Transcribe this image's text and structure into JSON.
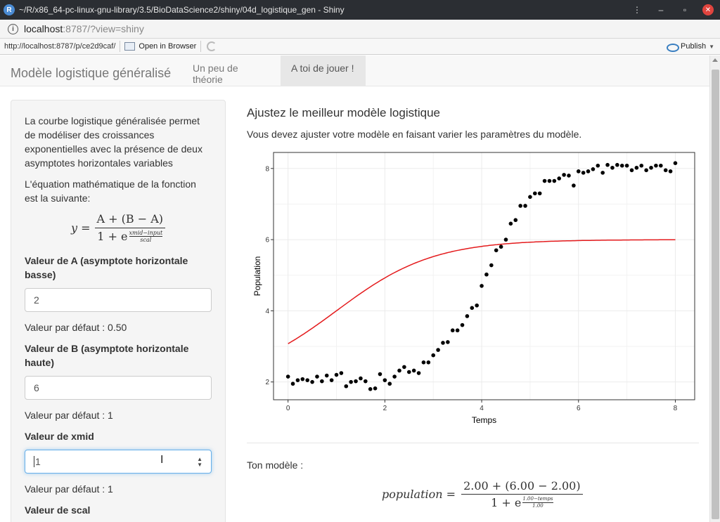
{
  "window": {
    "title": "~/R/x86_64-pc-linux-gnu-library/3.5/BioDataScience2/shiny/04d_logistique_gen - Shiny",
    "controls": [
      "⋮",
      "–",
      "▫"
    ],
    "close": "✕"
  },
  "address": {
    "host": "localhost",
    "rest": ":8787/?view=shiny"
  },
  "toolbar": {
    "url": "http://localhost:8787/p/ce2d9caf/",
    "open_browser": "Open in Browser",
    "publish": "Publish"
  },
  "navbar": {
    "brand": "Modèle logistique généralisé",
    "tabs": [
      {
        "label": "Un peu de théorie",
        "active": false
      },
      {
        "label": "A toi de jouer !",
        "active": true
      }
    ]
  },
  "sidebar": {
    "intro": "La courbe logistique généralisée permet de modéliser des croissances exponentielles avec la présence de deux asymptotes horizontales variables",
    "eq_intro": "L'équation mathématique de la fonction est la suivante:",
    "equation": {
      "lhs": "y =",
      "num": "A + (B − A)",
      "den": "1 + e",
      "exp_num": "xmid−input",
      "exp_den": "scal"
    },
    "fields": [
      {
        "label": "Valeur de A (asymptote horizontale basse)",
        "value": "2",
        "default": "Valeur par défaut : 0.50"
      },
      {
        "label": "Valeur de B (asymptote horizontale haute)",
        "value": "6",
        "default": "Valeur par défaut : 1"
      },
      {
        "label": "Valeur de xmid",
        "value": "1",
        "default": "Valeur par défaut : 1"
      },
      {
        "label": "Valeur de scal"
      }
    ]
  },
  "main": {
    "heading": "Ajustez le meilleur modèle logistique",
    "subtitle": "Vous devez ajuster votre modèle en faisant varier les paramètres du modèle.",
    "model_label": "Ton modèle :",
    "model_equation": {
      "lhs": "population =",
      "num": "2.00 + (6.00 − 2.00)",
      "den": "1 + e",
      "exp_num": "1.00−temps",
      "exp_den": "1.00"
    }
  },
  "colors": {
    "curve": "#e41a1c",
    "points": "#000000",
    "accent_focus": "#66afe9"
  },
  "chart_data": {
    "type": "scatter",
    "xlabel": "Temps",
    "ylabel": "Population",
    "xlim": [
      -0.3,
      8.4
    ],
    "ylim": [
      1.5,
      8.45
    ],
    "xticks": [
      0,
      2,
      4,
      6,
      8
    ],
    "yticks": [
      2,
      4,
      6,
      8
    ],
    "grid": true,
    "points": {
      "x": [
        0.0,
        0.1,
        0.2,
        0.3,
        0.4,
        0.5,
        0.6,
        0.7,
        0.8,
        0.9,
        1.0,
        1.1,
        1.2,
        1.3,
        1.4,
        1.5,
        1.6,
        1.7,
        1.8,
        1.9,
        2.0,
        2.1,
        2.2,
        2.3,
        2.4,
        2.5,
        2.6,
        2.7,
        2.8,
        2.9,
        3.0,
        3.1,
        3.2,
        3.3,
        3.4,
        3.5,
        3.6,
        3.7,
        3.8,
        3.9,
        4.0,
        4.1,
        4.2,
        4.3,
        4.4,
        4.5,
        4.6,
        4.7,
        4.8,
        4.9,
        5.0,
        5.1,
        5.2,
        5.3,
        5.4,
        5.5,
        5.6,
        5.7,
        5.8,
        5.9,
        6.0,
        6.1,
        6.2,
        6.3,
        6.4,
        6.5,
        6.6,
        6.7,
        6.8,
        6.9,
        7.0,
        7.1,
        7.2,
        7.3,
        7.4,
        7.5,
        7.6,
        7.7,
        7.8,
        7.9,
        8.0
      ],
      "y": [
        2.15,
        1.95,
        2.05,
        2.08,
        2.05,
        2.0,
        2.15,
        2.02,
        2.18,
        2.05,
        2.2,
        2.25,
        1.88,
        2.0,
        2.02,
        2.1,
        2.02,
        1.8,
        1.82,
        2.22,
        2.05,
        1.95,
        2.15,
        2.32,
        2.42,
        2.28,
        2.32,
        2.25,
        2.55,
        2.55,
        2.75,
        2.9,
        3.1,
        3.12,
        3.45,
        3.45,
        3.6,
        3.85,
        4.08,
        4.15,
        4.7,
        5.02,
        5.28,
        5.7,
        5.8,
        6.0,
        6.45,
        6.55,
        6.95,
        6.95,
        7.2,
        7.3,
        7.3,
        7.65,
        7.65,
        7.65,
        7.72,
        7.82,
        7.8,
        7.52,
        7.92,
        7.88,
        7.92,
        7.98,
        8.08,
        7.88,
        8.1,
        8.02,
        8.1,
        8.08,
        8.08,
        7.95,
        8.02,
        8.08,
        7.95,
        8.02,
        8.08,
        8.08,
        7.95,
        7.92,
        8.15
      ]
    },
    "model": {
      "A": 2,
      "B": 6,
      "xmid": 1,
      "scal": 1,
      "x_from": 0,
      "x_to": 8
    }
  }
}
